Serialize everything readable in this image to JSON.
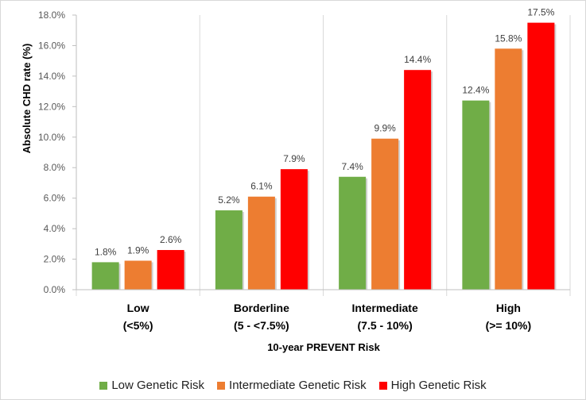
{
  "chart_data": {
    "type": "bar",
    "title": "",
    "xlabel": "10-year PREVENT Risk",
    "ylabel": "Absolute CHD rate (%)",
    "ylim": [
      0,
      18
    ],
    "yticks": [
      "0.0%",
      "2.0%",
      "4.0%",
      "6.0%",
      "8.0%",
      "10.0%",
      "12.0%",
      "14.0%",
      "16.0%",
      "18.0%"
    ],
    "grid": "vertical",
    "legend_position": "bottom",
    "categories": [
      {
        "name": "Low",
        "range": "(<5%)"
      },
      {
        "name": "Borderline",
        "range": "(5 - <7.5%)"
      },
      {
        "name": "Intermediate",
        "range": "(7.5 - 10%)"
      },
      {
        "name": "High",
        "range": "(>= 10%)"
      }
    ],
    "series": [
      {
        "name": "Low Genetic Risk",
        "color": "#70ad47",
        "values": [
          1.8,
          5.2,
          7.4,
          12.4
        ],
        "labels": [
          "1.8%",
          "5.2%",
          "7.4%",
          "12.4%"
        ]
      },
      {
        "name": "Intermediate Genetic Risk",
        "color": "#ed7d31",
        "values": [
          1.9,
          6.1,
          9.9,
          15.8
        ],
        "labels": [
          "1.9%",
          "6.1%",
          "9.9%",
          "15.8%"
        ]
      },
      {
        "name": "High Genetic Risk",
        "color": "#ff0000",
        "values": [
          2.6,
          7.9,
          14.4,
          17.5
        ],
        "labels": [
          "2.6%",
          "7.9%",
          "14.4%",
          "17.5%"
        ]
      }
    ]
  }
}
